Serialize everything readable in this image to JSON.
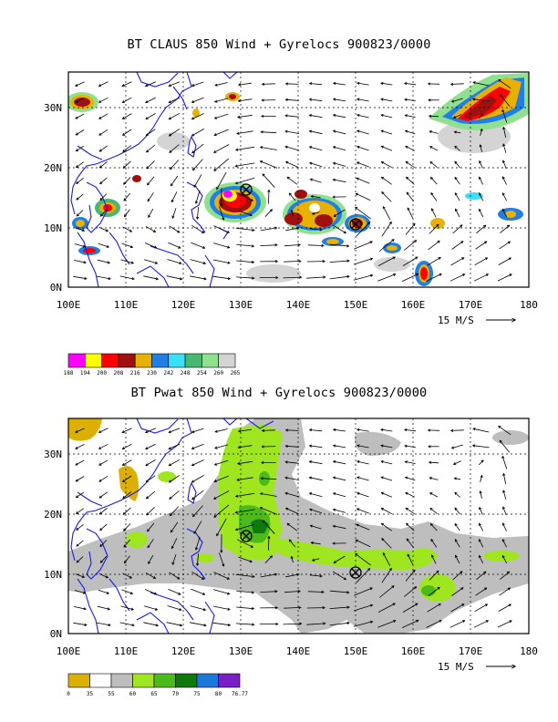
{
  "chart_data": [
    {
      "type": "vector_field_map",
      "title": "BT CLAUS 850 Wind + Gyrelocs 900823/0000",
      "xlabel": "",
      "ylabel": "",
      "xlim": [
        100,
        180
      ],
      "ylim": [
        0,
        36
      ],
      "x_ticks": [
        "100E",
        "110E",
        "120E",
        "130E",
        "140E",
        "150E",
        "160E",
        "170E",
        "180"
      ],
      "y_ticks": [
        "0N",
        "10N",
        "20N",
        "30N"
      ],
      "x_tick_values": [
        100,
        110,
        120,
        130,
        140,
        150,
        160,
        170,
        180
      ],
      "y_tick_values": [
        0,
        10,
        20,
        30
      ],
      "gridlines": "dashed at every 10 degrees",
      "reference_vector": "15 M/S",
      "gyre_locations": [
        {
          "lon": 131,
          "lat": 16.5
        },
        {
          "lon": 150,
          "lat": 10.5
        }
      ],
      "legend": {
        "labels": [
          "188",
          "194",
          "200",
          "208",
          "216",
          "230",
          "242",
          "248",
          "254",
          "260",
          "265"
        ],
        "colors": [
          "#ff00ff",
          "#ffff00",
          "#ff0000",
          "#a01010",
          "#e8b000",
          "#1f7fe6",
          "#38e0f8",
          "#46b873",
          "#90e090",
          "#d4d4d4"
        ]
      }
    },
    {
      "type": "vector_field_map",
      "title": "BT Pwat 850 Wind + Gyrelocs 900823/0000",
      "xlabel": "",
      "ylabel": "",
      "xlim": [
        100,
        180
      ],
      "ylim": [
        0,
        36
      ],
      "x_ticks": [
        "100E",
        "110E",
        "120E",
        "130E",
        "140E",
        "150E",
        "160E",
        "170E",
        "180"
      ],
      "y_ticks": [
        "0N",
        "10N",
        "20N",
        "30N"
      ],
      "x_tick_values": [
        100,
        110,
        120,
        130,
        140,
        150,
        160,
        170,
        180
      ],
      "y_tick_values": [
        0,
        10,
        20,
        30
      ],
      "gridlines": "dashed at every 10 degrees",
      "reference_vector": "15 M/S",
      "gyre_locations": [
        {
          "lon": 131,
          "lat": 16.5
        },
        {
          "lon": 150,
          "lat": 10.5
        }
      ],
      "legend": {
        "labels": [
          "0",
          "35",
          "55",
          "60",
          "65",
          "70",
          "75",
          "80",
          "76.77"
        ],
        "colors": [
          "#dcb000",
          "#ffffff",
          "#bebebe",
          "#a0e620",
          "#4cba18",
          "#0e7a0e",
          "#1e78dc",
          "#7a1ec8"
        ]
      }
    }
  ]
}
